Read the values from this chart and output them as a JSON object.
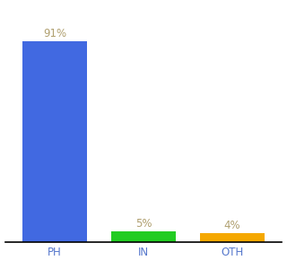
{
  "categories": [
    "PH",
    "IN",
    "OTH"
  ],
  "values": [
    91,
    5,
    4
  ],
  "bar_colors": [
    "#4169e1",
    "#22cc22",
    "#f5a800"
  ],
  "labels": [
    "91%",
    "5%",
    "4%"
  ],
  "label_color": "#b0a070",
  "ylim": [
    0,
    100
  ],
  "background_color": "#ffffff",
  "label_fontsize": 8.5,
  "tick_fontsize": 8.5,
  "tick_color": "#5577cc",
  "bar_width": 0.72,
  "x_positions": [
    0,
    1,
    2
  ],
  "figsize": [
    3.2,
    3.0
  ],
  "dpi": 100
}
